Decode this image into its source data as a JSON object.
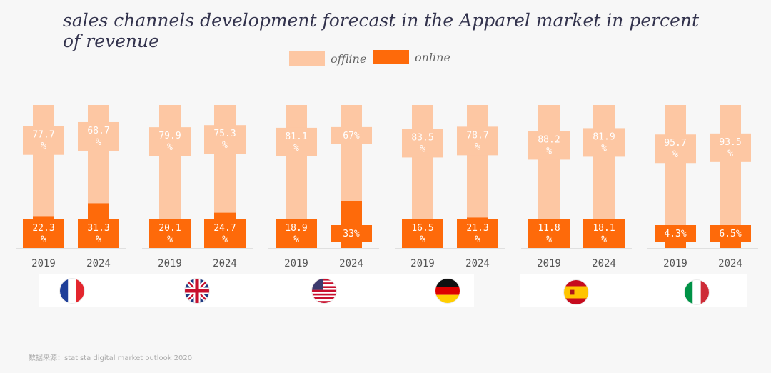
{
  "title": "sales channels development forecast in the Apparel market in percent of revenue",
  "legend": {
    "offline": "offline",
    "online": "online"
  },
  "colors": {
    "offline": "#fdc7a3",
    "online": "#fe6a0a",
    "background": "#f7f7f7"
  },
  "source": "数据来源：statista digital market outlook 2020",
  "chart_data": {
    "type": "bar",
    "stacked": true,
    "ylim": [
      0,
      100
    ],
    "groups": [
      {
        "country": "France",
        "flag_icon": "france-flag-icon",
        "bars": [
          {
            "year": "2019",
            "offline": 77.7,
            "online": 22.3,
            "offline_label": "77.7%",
            "online_label": "22.3%"
          },
          {
            "year": "2024",
            "offline": 68.7,
            "online": 31.3,
            "offline_label": "68.7%",
            "online_label": "31.3%"
          }
        ]
      },
      {
        "country": "United Kingdom",
        "flag_icon": "uk-flag-icon",
        "bars": [
          {
            "year": "2019",
            "offline": 79.9,
            "online": 20.1,
            "offline_label": "79.9%",
            "online_label": "20.1%"
          },
          {
            "year": "2024",
            "offline": 75.3,
            "online": 24.7,
            "offline_label": "75.3%",
            "online_label": "24.7%"
          }
        ]
      },
      {
        "country": "United States",
        "flag_icon": "usa-flag-icon",
        "bars": [
          {
            "year": "2019",
            "offline": 81.1,
            "online": 18.9,
            "offline_label": "81.1%",
            "online_label": "18.9%"
          },
          {
            "year": "2024",
            "offline": 67,
            "online": 33,
            "offline_label": "67%",
            "online_label": "33%"
          }
        ]
      },
      {
        "country": "Germany",
        "flag_icon": "germany-flag-icon",
        "bars": [
          {
            "year": "2019",
            "offline": 83.5,
            "online": 16.5,
            "offline_label": "83.5%",
            "online_label": "16.5%"
          },
          {
            "year": "2024",
            "offline": 78.7,
            "online": 21.3,
            "offline_label": "78.7%",
            "online_label": "21.3%"
          }
        ]
      },
      {
        "country": "Spain",
        "flag_icon": "spain-flag-icon",
        "bars": [
          {
            "year": "2019",
            "offline": 88.2,
            "online": 11.8,
            "offline_label": "88.2%",
            "online_label": "11.8%"
          },
          {
            "year": "2024",
            "offline": 81.9,
            "online": 18.1,
            "offline_label": "81.9%",
            "online_label": "18.1%"
          }
        ]
      },
      {
        "country": "Italy",
        "flag_icon": "italy-flag-icon",
        "bars": [
          {
            "year": "2019",
            "offline": 95.7,
            "online": 4.3,
            "offline_label": "95.7%",
            "online_label": "4.3%"
          },
          {
            "year": "2024",
            "offline": 93.5,
            "online": 6.5,
            "offline_label": "93.5%",
            "online_label": "6.5%"
          }
        ]
      }
    ]
  }
}
